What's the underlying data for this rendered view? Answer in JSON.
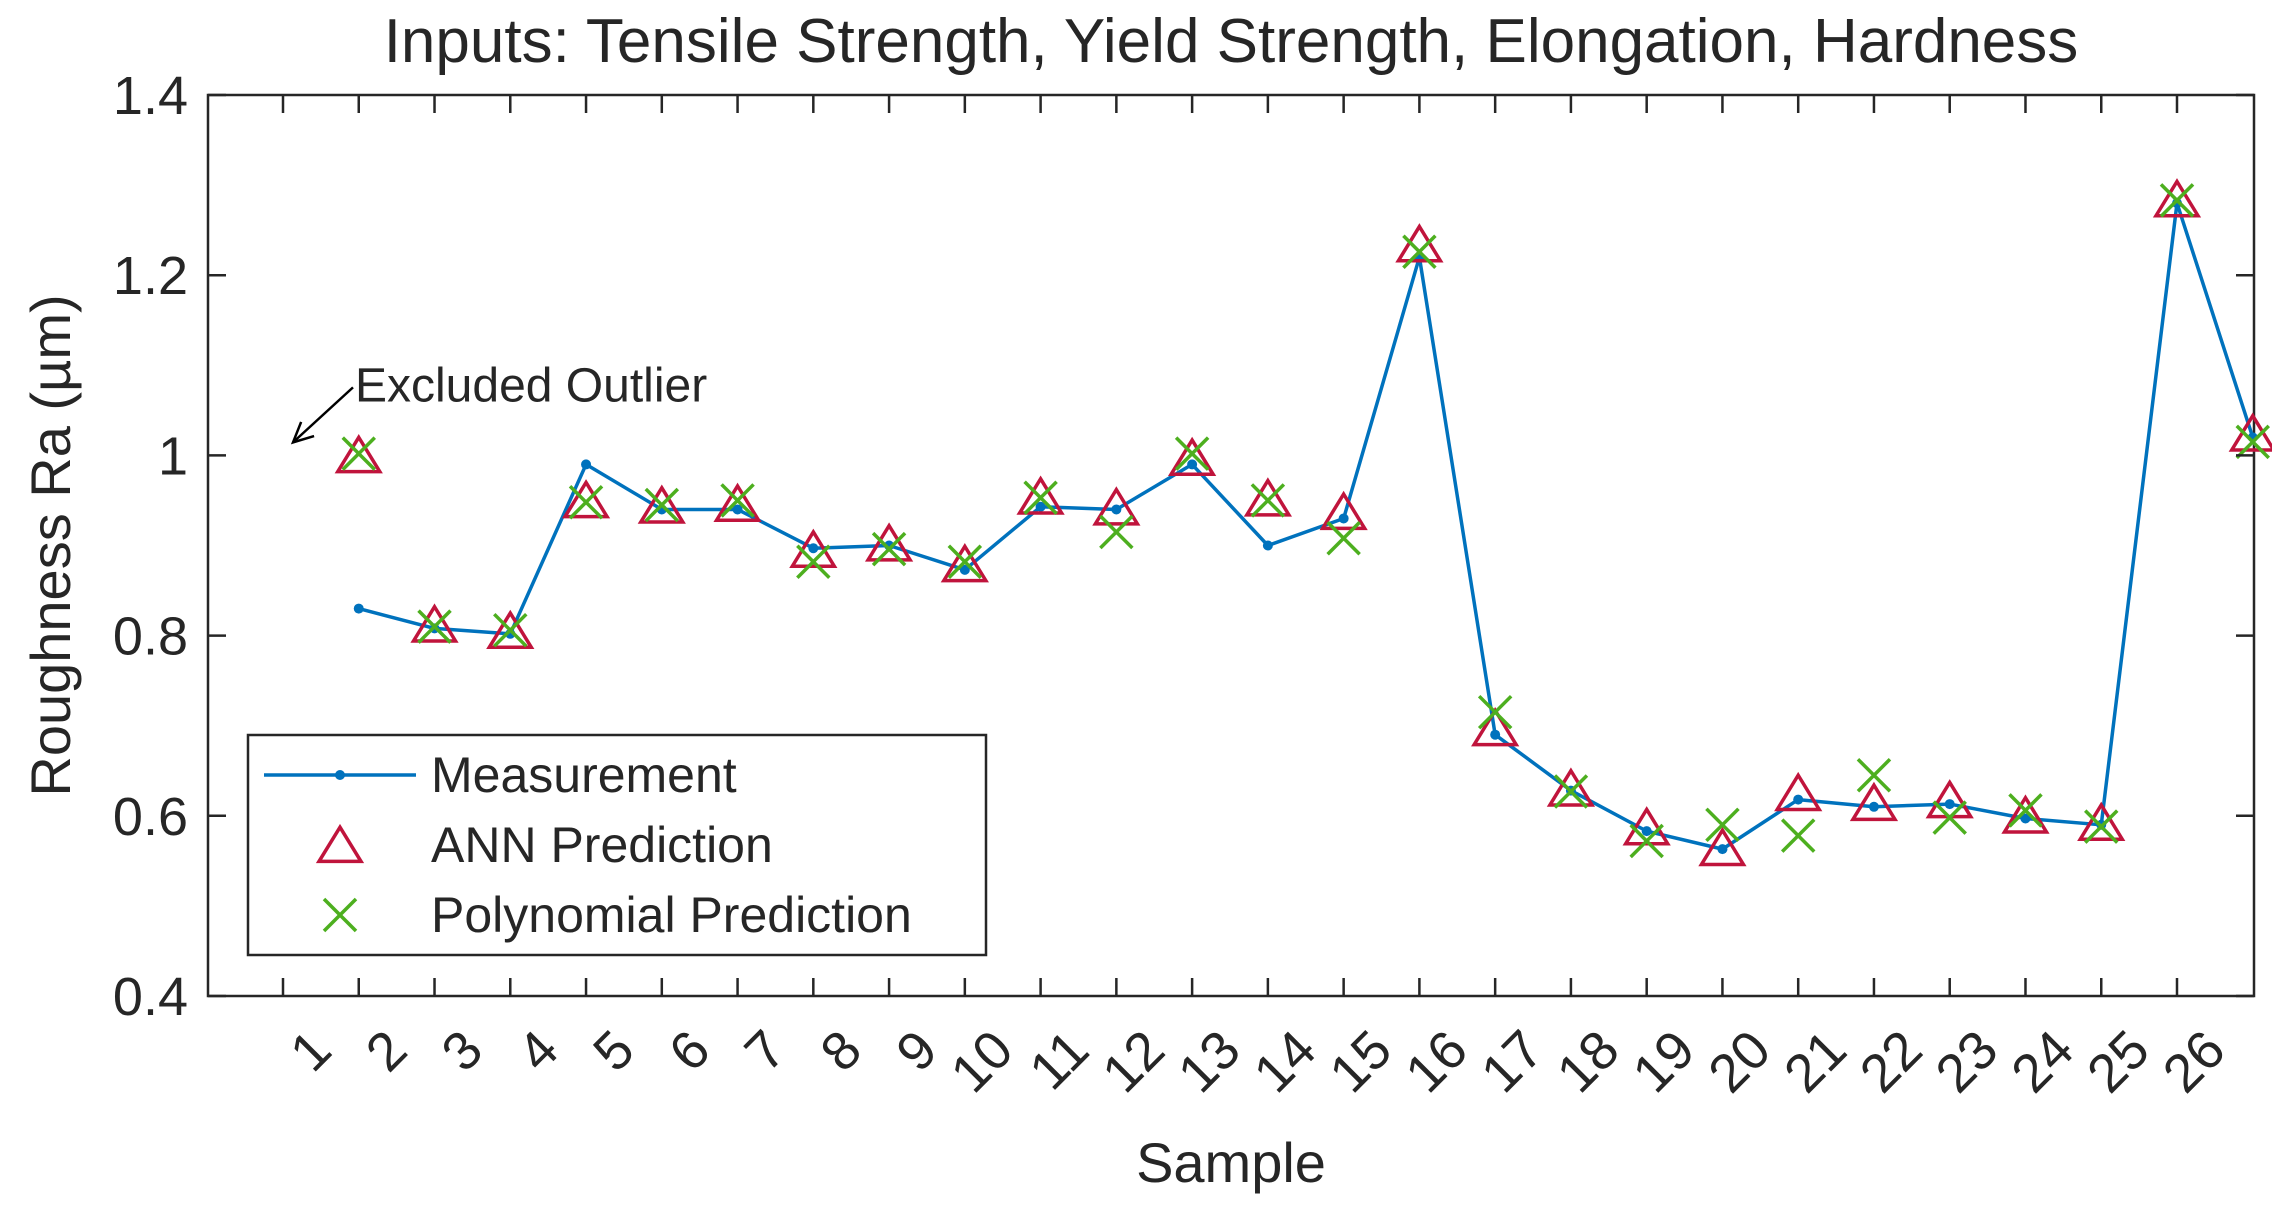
{
  "chart_data": {
    "type": "line",
    "title": "Inputs: Tensile Strength, Yield Strength, Elongation, Hardness",
    "xlabel": "Sample",
    "ylabel": "Roughness Ra (µm)",
    "ylim": [
      0.4,
      1.4
    ],
    "yticks": [
      0.4,
      0.6,
      0.8,
      1.0,
      1.2,
      1.4
    ],
    "ytick_labels": [
      "0.4",
      "0.6",
      "0.8",
      "1",
      "1.2",
      "1.4"
    ],
    "categories": [
      "1",
      "2",
      "3",
      "4",
      "5",
      "6",
      "7",
      "8",
      "9",
      "10",
      "11",
      "12",
      "13",
      "14",
      "15",
      "16",
      "17",
      "18",
      "19",
      "20",
      "21",
      "22",
      "23",
      "24",
      "25",
      "26"
    ],
    "grid": false,
    "legend_position": "bottom-left",
    "series": [
      {
        "name": "Measurement",
        "marker": "dot-line",
        "color": "#0072BD",
        "start_index": 1,
        "values": [
          0.83,
          0.808,
          0.802,
          0.99,
          0.94,
          0.94,
          0.897,
          0.9,
          0.873,
          0.943,
          0.94,
          0.99,
          0.9,
          0.93,
          1.22,
          0.69,
          0.628,
          0.583,
          0.563,
          0.618,
          0.61,
          0.613,
          0.597,
          0.59,
          1.28,
          1.02
        ]
      },
      {
        "name": "ANN Prediction",
        "marker": "triangle",
        "color": "#C0143C",
        "start_index": 1,
        "values": [
          0.998,
          0.81,
          0.803,
          0.948,
          0.942,
          0.944,
          0.893,
          0.9,
          0.877,
          0.952,
          0.94,
          0.995,
          0.95,
          0.935,
          1.232,
          0.695,
          0.628,
          0.585,
          0.562,
          0.623,
          0.612,
          0.615,
          0.598,
          0.59,
          1.282,
          1.022
        ]
      },
      {
        "name": "Polynomial Prediction",
        "marker": "x",
        "color": "#4DAF1F",
        "start_index": 1,
        "values": [
          1.002,
          0.81,
          0.806,
          0.948,
          0.945,
          0.95,
          0.882,
          0.896,
          0.882,
          0.953,
          0.915,
          1.002,
          0.95,
          0.908,
          1.226,
          0.715,
          0.627,
          0.572,
          0.59,
          0.578,
          0.645,
          0.598,
          0.606,
          0.588,
          1.283,
          1.015
        ]
      }
    ],
    "annotations": [
      {
        "text": "Excluded Outlier",
        "target_sample": 1,
        "target_value": 1.02
      }
    ]
  }
}
